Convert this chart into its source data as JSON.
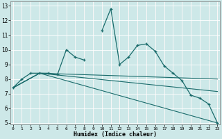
{
  "xlabel": "Humidex (Indice chaleur)",
  "bg_color": "#cde8e8",
  "grid_color": "#ffffff",
  "line_color": "#1a6b6b",
  "xlim": [
    0,
    23
  ],
  "ylim": [
    5,
    13
  ],
  "xticks": [
    0,
    1,
    2,
    3,
    4,
    5,
    6,
    7,
    8,
    9,
    10,
    11,
    12,
    13,
    14,
    15,
    16,
    17,
    18,
    19,
    20,
    21,
    22,
    23
  ],
  "yticks": [
    5,
    6,
    7,
    8,
    9,
    10,
    11,
    12,
    13
  ],
  "series1_x": [
    0,
    1,
    2,
    3,
    4,
    5,
    6,
    7,
    8,
    10,
    11,
    12,
    13,
    14,
    15,
    16,
    17,
    18,
    19,
    20,
    21,
    22,
    23
  ],
  "series1_y": [
    7.4,
    8.0,
    8.4,
    8.4,
    8.4,
    8.3,
    10.0,
    9.5,
    9.3,
    11.3,
    12.8,
    9.0,
    9.5,
    10.3,
    10.4,
    9.9,
    8.9,
    8.4,
    7.9,
    6.9,
    6.7,
    6.3,
    5.0
  ],
  "series1_break": 9,
  "line2_x": [
    0,
    3,
    23
  ],
  "line2_y": [
    7.4,
    8.4,
    5.0
  ],
  "line3_x": [
    0,
    3,
    23
  ],
  "line3_y": [
    7.4,
    8.4,
    8.0
  ],
  "line4_x": [
    0,
    3,
    23
  ],
  "line4_y": [
    7.4,
    8.4,
    7.15
  ]
}
